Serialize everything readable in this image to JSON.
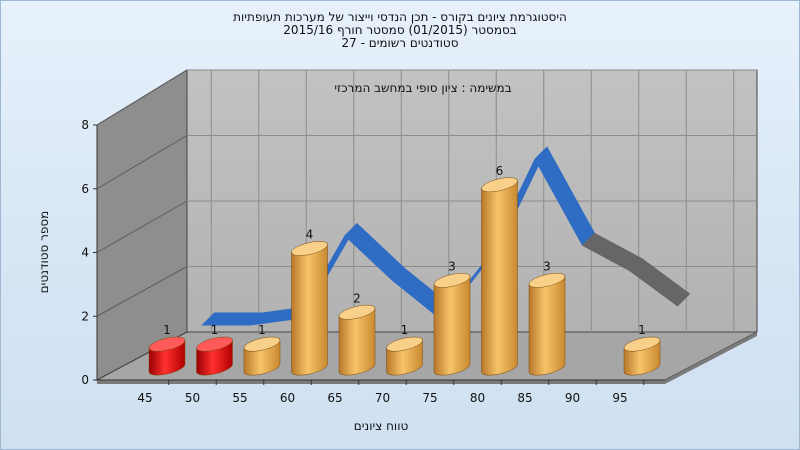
{
  "title": {
    "line1": "היסטוגרמת ציונים בקורס - תכן הנדסי וייצור של מערכות תעופתיות",
    "line2": "בסמסטר  (01/2015)  סמסטר חורף 2015/16",
    "line3": "סטודנטים רשומים - 27"
  },
  "colors": {
    "fail_bar": "#e00000",
    "pass_bar": "#e9a43a",
    "curve": "#2f6cc4",
    "curve_tail": "#666666",
    "back_wall": "#b9b9b9",
    "side_wall": "#8a8a8a",
    "floor": "#a4a4a4"
  },
  "chart_data": {
    "type": "bar",
    "subtitle": "במשימה : ציון סופי במחשב המרכזי",
    "xlabel": "טווח ציונים",
    "ylabel": "מספר סטודנטים",
    "ylim": [
      0,
      8
    ],
    "yticks": [
      0,
      2,
      4,
      6,
      8
    ],
    "xticks": [
      "45",
      "50",
      "55",
      "60",
      "65",
      "70",
      "75",
      "80",
      "85",
      "90",
      "95"
    ],
    "categories": [
      "45",
      "50",
      "55",
      "60",
      "65",
      "70",
      "75",
      "80",
      "85",
      "90",
      "95"
    ],
    "values": [
      1,
      1,
      1,
      4,
      2,
      1,
      3,
      6,
      3,
      0,
      1
    ],
    "bar_status": [
      "fail",
      "fail",
      "pass",
      "pass",
      "pass",
      "pass",
      "pass",
      "pass",
      "pass",
      "pass",
      "pass"
    ],
    "grid": true,
    "legend": false,
    "trend_line": {
      "x": [
        50,
        55,
        60,
        65,
        70,
        75,
        80,
        85,
        90,
        95,
        100
      ],
      "y": [
        1.6,
        1.6,
        1.8,
        4.4,
        3.0,
        1.8,
        3.7,
        6.8,
        4.1,
        3.3,
        2.2
      ]
    }
  }
}
